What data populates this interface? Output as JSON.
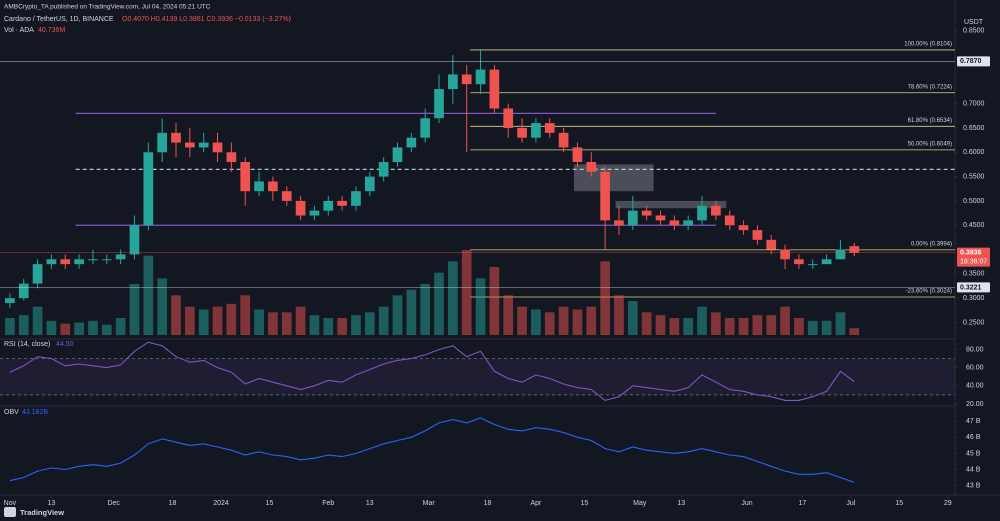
{
  "header": {
    "publisher": "AMBCrypto_TA published on TradingView.com, Jul 04, 2024 05:21 UTC",
    "brand": "TradingView"
  },
  "chart_data": [
    {
      "type": "candlestick",
      "title": "Cardano / TetherUS, 1D, BINANCE",
      "ohlc_label": "O0.4070 H0.4139 L0.3861 C0.3936 −0.0133 (−3.27%)",
      "volume_title": "Vol · ADA",
      "volume_value_label": "40.736M",
      "y_axis_label": "USDT",
      "up_color": "#26a69a",
      "down_color": "#ef5350",
      "x": [
        0,
        4,
        8,
        12,
        16,
        20,
        24,
        28,
        32,
        36,
        40,
        44,
        48,
        52,
        56,
        60,
        64,
        68,
        72,
        76,
        80,
        84,
        88,
        92,
        96,
        100,
        104,
        108,
        112,
        116,
        120,
        124,
        128,
        132,
        136,
        140,
        144,
        148,
        152,
        156,
        160,
        164,
        168,
        172,
        176,
        180,
        184,
        188,
        192,
        196,
        200,
        204,
        208,
        212,
        216,
        220,
        224,
        228,
        232,
        236,
        240,
        244
      ],
      "candles": [
        [
          0.29,
          0.31,
          0.28,
          0.3
        ],
        [
          0.3,
          0.34,
          0.295,
          0.33
        ],
        [
          0.33,
          0.38,
          0.32,
          0.37
        ],
        [
          0.37,
          0.39,
          0.36,
          0.38
        ],
        [
          0.38,
          0.39,
          0.36,
          0.37
        ],
        [
          0.37,
          0.39,
          0.36,
          0.38
        ],
        [
          0.38,
          0.4,
          0.37,
          0.38
        ],
        [
          0.38,
          0.39,
          0.37,
          0.38
        ],
        [
          0.38,
          0.4,
          0.37,
          0.39
        ],
        [
          0.39,
          0.47,
          0.38,
          0.45
        ],
        [
          0.45,
          0.62,
          0.44,
          0.6
        ],
        [
          0.6,
          0.67,
          0.58,
          0.64
        ],
        [
          0.64,
          0.66,
          0.59,
          0.62
        ],
        [
          0.62,
          0.65,
          0.59,
          0.61
        ],
        [
          0.61,
          0.64,
          0.6,
          0.62
        ],
        [
          0.62,
          0.64,
          0.58,
          0.6
        ],
        [
          0.6,
          0.62,
          0.56,
          0.58
        ],
        [
          0.58,
          0.59,
          0.49,
          0.52
        ],
        [
          0.52,
          0.56,
          0.51,
          0.54
        ],
        [
          0.54,
          0.55,
          0.5,
          0.52
        ],
        [
          0.52,
          0.53,
          0.49,
          0.5
        ],
        [
          0.5,
          0.51,
          0.46,
          0.47
        ],
        [
          0.47,
          0.49,
          0.46,
          0.48
        ],
        [
          0.48,
          0.51,
          0.47,
          0.5
        ],
        [
          0.5,
          0.51,
          0.48,
          0.49
        ],
        [
          0.49,
          0.53,
          0.48,
          0.52
        ],
        [
          0.52,
          0.56,
          0.51,
          0.55
        ],
        [
          0.55,
          0.59,
          0.54,
          0.58
        ],
        [
          0.58,
          0.62,
          0.57,
          0.61
        ],
        [
          0.61,
          0.64,
          0.6,
          0.63
        ],
        [
          0.63,
          0.69,
          0.62,
          0.67
        ],
        [
          0.67,
          0.76,
          0.66,
          0.73
        ],
        [
          0.73,
          0.8,
          0.7,
          0.76
        ],
        [
          0.76,
          0.78,
          0.6,
          0.74
        ],
        [
          0.74,
          0.81,
          0.72,
          0.77
        ],
        [
          0.77,
          0.78,
          0.68,
          0.69
        ],
        [
          0.69,
          0.7,
          0.63,
          0.65
        ],
        [
          0.65,
          0.67,
          0.62,
          0.63
        ],
        [
          0.63,
          0.67,
          0.62,
          0.66
        ],
        [
          0.66,
          0.67,
          0.63,
          0.64
        ],
        [
          0.64,
          0.65,
          0.6,
          0.61
        ],
        [
          0.61,
          0.62,
          0.57,
          0.58
        ],
        [
          0.58,
          0.6,
          0.55,
          0.56
        ],
        [
          0.56,
          0.57,
          0.4,
          0.46
        ],
        [
          0.46,
          0.49,
          0.43,
          0.45
        ],
        [
          0.45,
          0.51,
          0.44,
          0.48
        ],
        [
          0.48,
          0.49,
          0.46,
          0.47
        ],
        [
          0.47,
          0.48,
          0.45,
          0.46
        ],
        [
          0.46,
          0.47,
          0.44,
          0.45
        ],
        [
          0.45,
          0.47,
          0.44,
          0.46
        ],
        [
          0.46,
          0.51,
          0.45,
          0.49
        ],
        [
          0.49,
          0.5,
          0.46,
          0.47
        ],
        [
          0.47,
          0.48,
          0.44,
          0.45
        ],
        [
          0.45,
          0.46,
          0.43,
          0.44
        ],
        [
          0.44,
          0.45,
          0.41,
          0.42
        ],
        [
          0.42,
          0.43,
          0.39,
          0.4
        ],
        [
          0.4,
          0.41,
          0.36,
          0.38
        ],
        [
          0.38,
          0.39,
          0.36,
          0.37
        ],
        [
          0.37,
          0.38,
          0.36,
          0.37
        ],
        [
          0.37,
          0.39,
          0.37,
          0.38
        ],
        [
          0.38,
          0.42,
          0.38,
          0.4
        ],
        [
          0.407,
          0.4139,
          0.3861,
          0.3936
        ]
      ],
      "volume": [
        300,
        350,
        500,
        250,
        200,
        220,
        250,
        180,
        300,
        900,
        1400,
        1000,
        700,
        500,
        450,
        500,
        550,
        700,
        450,
        400,
        400,
        500,
        350,
        300,
        300,
        350,
        400,
        500,
        700,
        800,
        900,
        1100,
        1300,
        1500,
        1000,
        1200,
        700,
        500,
        450,
        400,
        500,
        450,
        500,
        1300,
        700,
        600,
        400,
        350,
        300,
        300,
        500,
        400,
        300,
        300,
        350,
        350,
        500,
        300,
        250,
        250,
        400,
        120
      ],
      "xlim": [
        -2.86,
        273.1
      ],
      "ylim": [
        0.2243,
        0.872
      ],
      "xticks": [
        {
          "value": 0,
          "label": "Nov"
        },
        {
          "value": 12,
          "label": "13"
        },
        {
          "value": 30,
          "label": "Dec"
        },
        {
          "value": 47,
          "label": "18"
        },
        {
          "value": 61,
          "label": "2024"
        },
        {
          "value": 75,
          "label": "15"
        },
        {
          "value": 92,
          "label": "Feb"
        },
        {
          "value": 104,
          "label": "13"
        },
        {
          "value": 121,
          "label": "Mar"
        },
        {
          "value": 138,
          "label": "18"
        },
        {
          "value": 152,
          "label": "Apr"
        },
        {
          "value": 166,
          "label": "15"
        },
        {
          "value": 182,
          "label": "May"
        },
        {
          "value": 194,
          "label": "13"
        },
        {
          "value": 213,
          "label": "Jun"
        },
        {
          "value": 229,
          "label": "17"
        },
        {
          "value": 243,
          "label": "Jul"
        },
        {
          "value": 257,
          "label": "15"
        },
        {
          "value": 271,
          "label": "29"
        }
      ],
      "yticks": [
        {
          "value": 0.85,
          "label": "0.8500"
        },
        {
          "value": 0.7,
          "label": "0.7000"
        },
        {
          "value": 0.65,
          "label": "0.6500"
        },
        {
          "value": 0.6,
          "label": "0.6000"
        },
        {
          "value": 0.55,
          "label": "0.5500"
        },
        {
          "value": 0.5,
          "label": "0.5000"
        },
        {
          "value": 0.45,
          "label": "0.4500"
        },
        {
          "value": 0.35,
          "label": "0.3500"
        },
        {
          "value": 0.3,
          "label": "0.3000"
        },
        {
          "value": 0.25,
          "label": "0.2500"
        }
      ],
      "levels": [
        {
          "value": 0.68,
          "from": 19,
          "to": 204,
          "style": "solid",
          "color": "#7e57c2"
        },
        {
          "value": 0.45,
          "from": 19,
          "to": 204,
          "style": "solid",
          "color": "#7e57c2"
        },
        {
          "value": 0.565,
          "from": 19,
          "to": 273.1,
          "style": "dashed",
          "color": "#d1d4dc"
        }
      ],
      "fib_color": "#d6d68a",
      "fib_from": 133,
      "fib": [
        {
          "value": 0.8104,
          "label": "100.00% (0.8104)"
        },
        {
          "value": 0.7224,
          "label": "78.60% (0.7224)"
        },
        {
          "value": 0.6534,
          "label": "61.80% (0.6534)"
        },
        {
          "value": 0.6049,
          "label": "50.00% (0.6049)"
        },
        {
          "value": 0.3994,
          "label": "0.00% (0.3994)"
        },
        {
          "value": 0.3024,
          "label": "-23.60% (0.3024)"
        }
      ],
      "zones": [
        {
          "x": [
            163,
            186
          ],
          "y": [
            0.52,
            0.575
          ]
        },
        {
          "x": [
            175,
            207
          ],
          "y": [
            0.485,
            0.5
          ]
        }
      ],
      "price_tags": [
        {
          "value": 0.787,
          "label": "0.7870",
          "color": "#e0e3eb",
          "text_color": "#131722"
        },
        {
          "value": 0.3221,
          "label": "0.3221",
          "color": "#e0e3eb",
          "text_color": "#131722"
        },
        {
          "value": 0.3936,
          "label": "0.3936",
          "color": "#ef5350",
          "text_color": "#ffffff"
        }
      ],
      "countdown": "18:38:07"
    },
    {
      "type": "line",
      "title": "RSI (14, close)",
      "value_label": "44.50",
      "color": "#7e57c2",
      "band": [
        30,
        70
      ],
      "values": [
        55,
        62,
        72,
        70,
        62,
        64,
        62,
        60,
        63,
        78,
        88,
        84,
        72,
        66,
        68,
        60,
        55,
        42,
        48,
        44,
        40,
        36,
        40,
        46,
        44,
        52,
        58,
        64,
        68,
        70,
        74,
        80,
        84,
        72,
        78,
        56,
        48,
        44,
        52,
        48,
        42,
        38,
        36,
        24,
        28,
        40,
        38,
        36,
        34,
        38,
        52,
        44,
        36,
        34,
        30,
        28,
        24,
        24,
        28,
        34,
        56,
        44.5
      ],
      "ylim": [
        20,
        86
      ],
      "yticks": [
        {
          "value": 80,
          "label": "80.00"
        },
        {
          "value": 60,
          "label": "60.00"
        },
        {
          "value": 40,
          "label": "40.00"
        },
        {
          "value": 20,
          "label": "20.00"
        }
      ]
    },
    {
      "type": "line",
      "title": "OBV",
      "value_label": "43.182B",
      "color": "#2962ff",
      "values": [
        43.3,
        43.5,
        43.9,
        44.1,
        44.0,
        44.2,
        44.3,
        44.2,
        44.4,
        44.9,
        45.6,
        45.9,
        45.7,
        45.5,
        45.6,
        45.4,
        45.2,
        44.9,
        45.1,
        44.9,
        44.8,
        44.6,
        44.7,
        44.9,
        44.8,
        45.0,
        45.3,
        45.6,
        45.8,
        46.0,
        46.4,
        46.9,
        47.1,
        46.9,
        47.2,
        46.8,
        46.5,
        46.4,
        46.6,
        46.5,
        46.3,
        46.0,
        45.8,
        45.3,
        45.1,
        45.4,
        45.2,
        45.1,
        45.0,
        45.1,
        45.3,
        45.1,
        44.9,
        44.8,
        44.5,
        44.2,
        43.9,
        43.7,
        43.7,
        43.8,
        43.5,
        43.2
      ],
      "ylim": [
        42.6,
        47.7
      ],
      "yticks": [
        {
          "value": 47,
          "label": "47 B"
        },
        {
          "value": 46,
          "label": "46 B"
        },
        {
          "value": 45,
          "label": "45 B"
        },
        {
          "value": 44,
          "label": "44 B"
        },
        {
          "value": 43,
          "label": "43 B"
        }
      ]
    }
  ]
}
